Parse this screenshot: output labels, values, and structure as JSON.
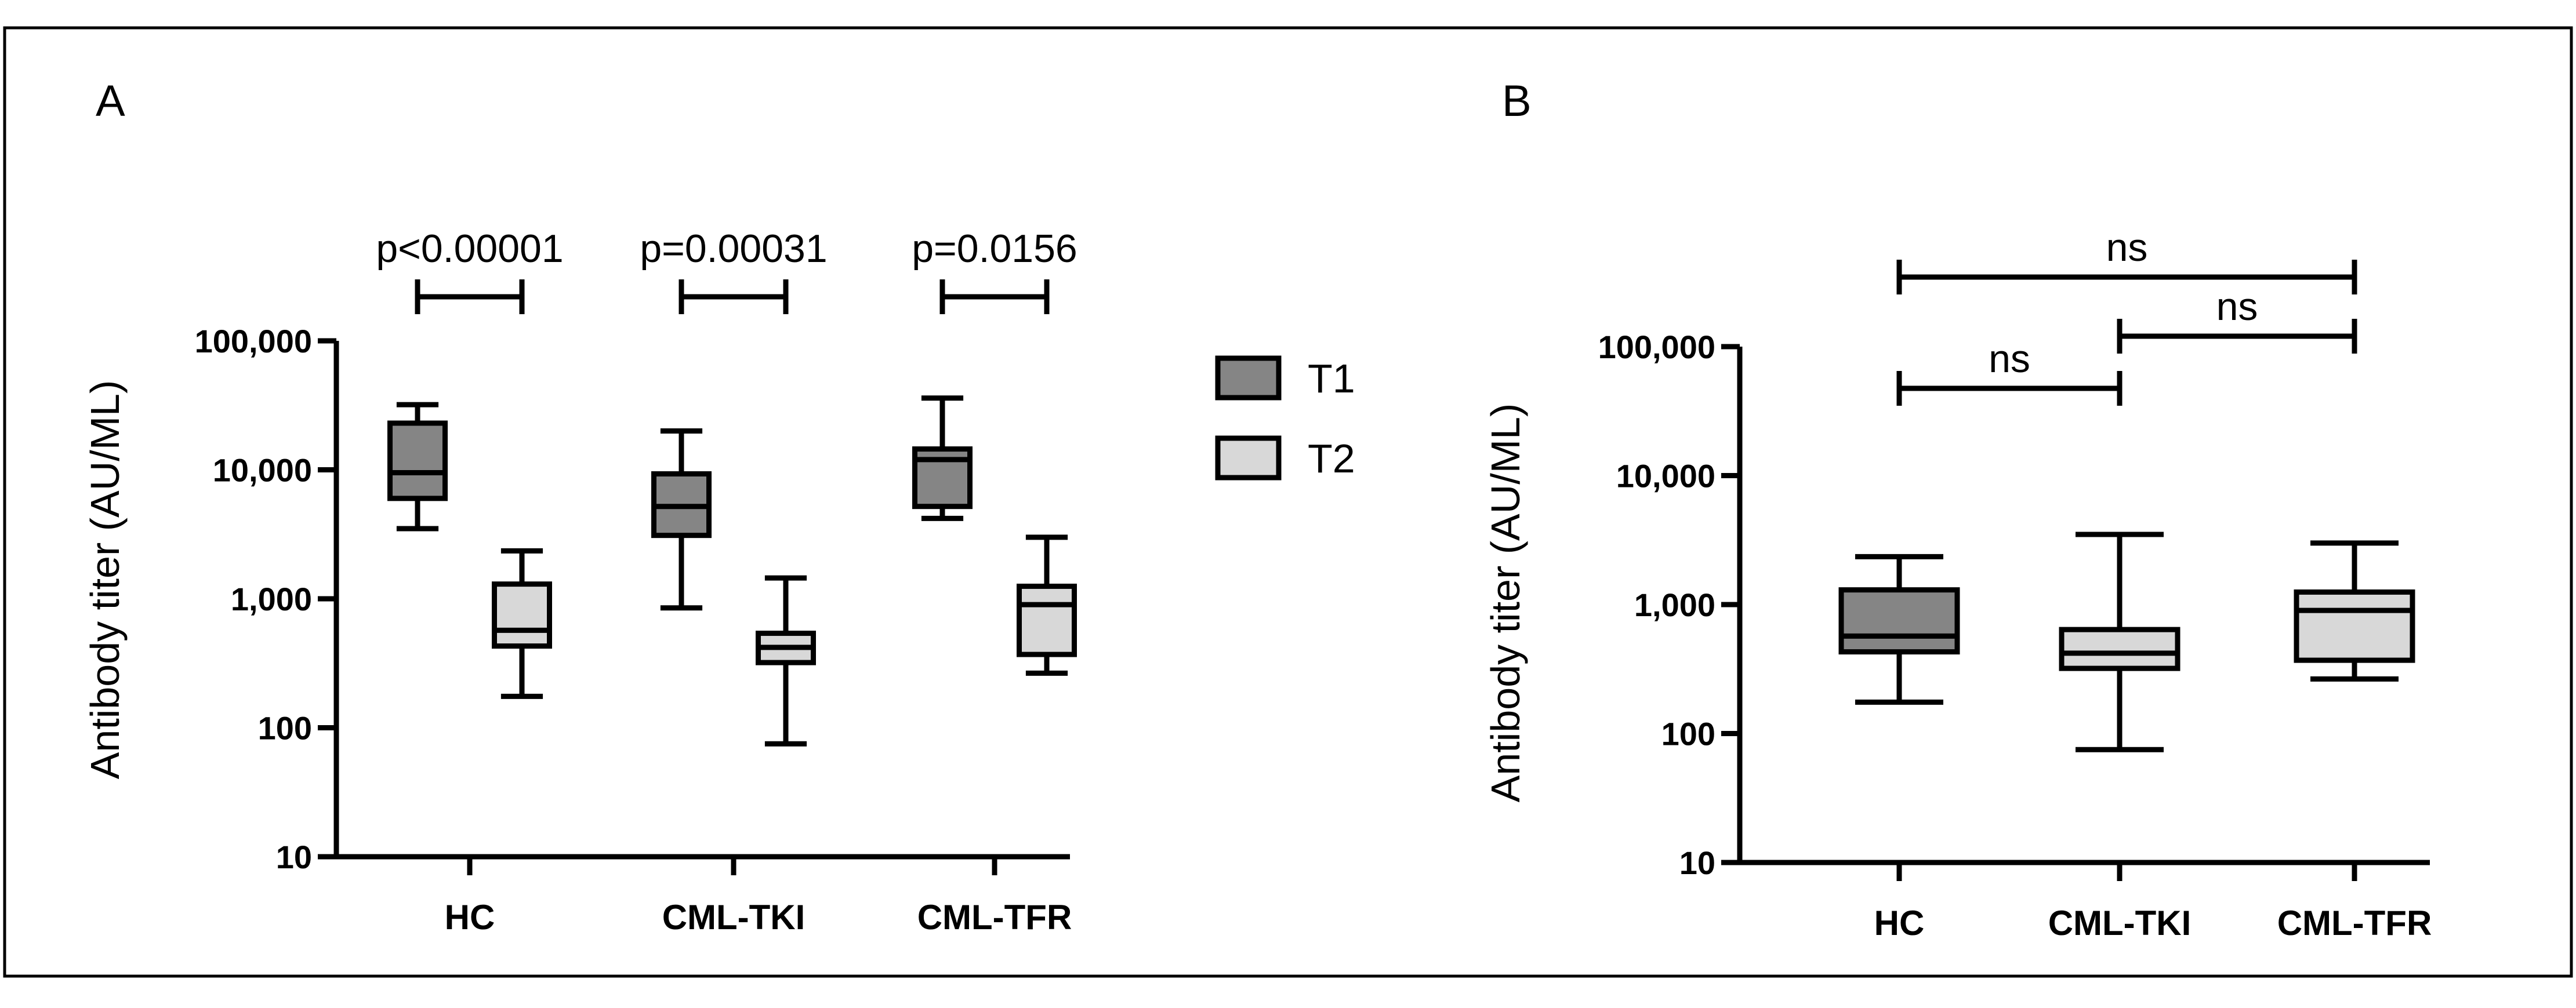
{
  "figure": {
    "border_color": "#000000",
    "background": "#ffffff"
  },
  "colors": {
    "T1": "#858585",
    "T2": "#d8d8d8",
    "stroke": "#000000"
  },
  "legend": {
    "items": [
      {
        "label": "T1",
        "color_key": "T1"
      },
      {
        "label": "T2",
        "color_key": "T2"
      }
    ]
  },
  "chart_data": [
    {
      "panel": "A",
      "type": "boxplot",
      "scale": "log",
      "ylabel": "Antibody titer (AU/ML)",
      "ylim": [
        10,
        100000
      ],
      "yticks": [
        10,
        100,
        1000,
        10000,
        100000
      ],
      "ytick_labels": [
        "10",
        "100",
        "1,000",
        "10,000",
        "100,000"
      ],
      "categories": [
        "HC",
        "CML-TKI",
        "CML-TFR"
      ],
      "series": [
        {
          "name": "T1",
          "boxes": [
            {
              "category": "HC",
              "min": 3500,
              "q1": 6000,
              "median": 9500,
              "q3": 23000,
              "max": 32000
            },
            {
              "category": "CML-TKI",
              "min": 850,
              "q1": 3100,
              "median": 5200,
              "q3": 9300,
              "max": 20000
            },
            {
              "category": "CML-TFR",
              "min": 4200,
              "q1": 5200,
              "median": 12000,
              "q3": 14500,
              "max": 36000
            }
          ]
        },
        {
          "name": "T2",
          "boxes": [
            {
              "category": "HC",
              "min": 175,
              "q1": 430,
              "median": 570,
              "q3": 1300,
              "max": 2350
            },
            {
              "category": "CML-TKI",
              "min": 75,
              "q1": 320,
              "median": 420,
              "q3": 540,
              "max": 1450
            },
            {
              "category": "CML-TFR",
              "min": 265,
              "q1": 370,
              "median": 900,
              "q3": 1250,
              "max": 3000
            }
          ]
        }
      ],
      "annotations": [
        {
          "text": "p<0.00001",
          "category": "HC"
        },
        {
          "text": "p=0.00031",
          "category": "CML-TKI"
        },
        {
          "text": "p=0.0156",
          "category": "CML-TFR"
        }
      ]
    },
    {
      "panel": "B",
      "type": "boxplot",
      "scale": "log",
      "ylabel": "Antibody titer (AU/ML)",
      "ylim": [
        10,
        100000
      ],
      "yticks": [
        10,
        100,
        1000,
        10000,
        100000
      ],
      "ytick_labels": [
        "10",
        "100",
        "1,000",
        "10,000",
        "100,000"
      ],
      "categories": [
        "HC",
        "CML-TKI",
        "CML-TFR"
      ],
      "series": [
        {
          "name": "T2",
          "boxes": [
            {
              "category": "HC",
              "min": 175,
              "q1": 430,
              "median": 570,
              "q3": 1300,
              "max": 2350,
              "color_key": "T1"
            },
            {
              "category": "CML-TKI",
              "min": 75,
              "q1": 320,
              "median": 420,
              "q3": 640,
              "max": 3500,
              "color_key": "T2"
            },
            {
              "category": "CML-TFR",
              "min": 265,
              "q1": 370,
              "median": 900,
              "q3": 1250,
              "max": 3000,
              "color_key": "T2"
            }
          ]
        }
      ],
      "comparisons": [
        {
          "text": "ns",
          "from": "HC",
          "to": "CML-TFR",
          "level": 3
        },
        {
          "text": "ns",
          "from": "CML-TKI",
          "to": "CML-TFR",
          "level": 2
        },
        {
          "text": "ns",
          "from": "HC",
          "to": "CML-TKI",
          "level": 1
        }
      ]
    }
  ]
}
